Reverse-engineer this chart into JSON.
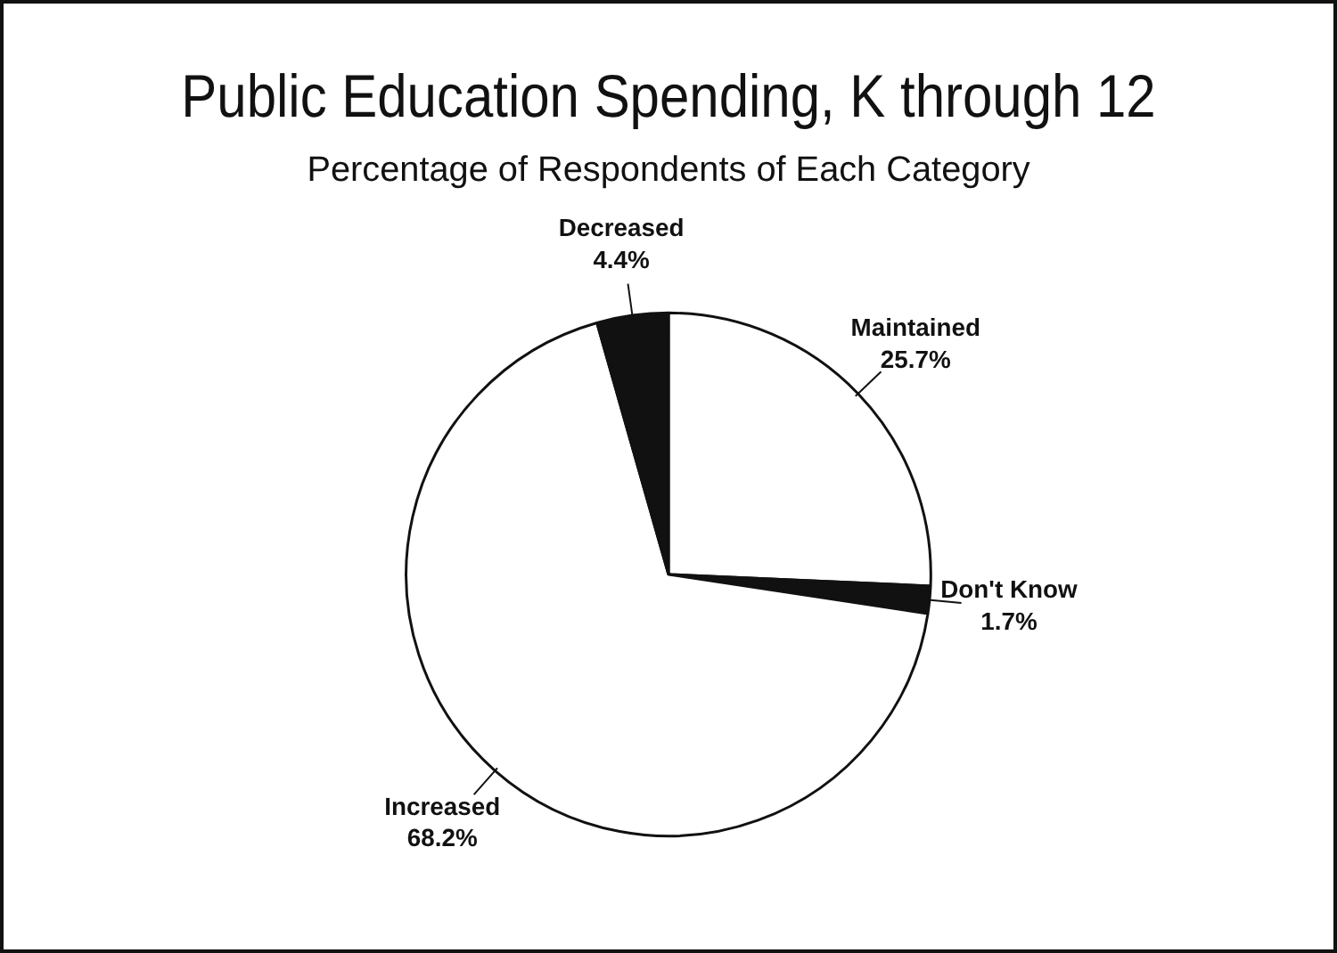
{
  "chart_data": {
    "type": "pie",
    "title": "Public Education Spending, K through 12",
    "subtitle": "Percentage of Respondents of Each Category",
    "categories": [
      "Maintained",
      "Don't Know",
      "Increased",
      "Decreased"
    ],
    "values": [
      25.7,
      1.7,
      68.2,
      4.4
    ],
    "colors": [
      "#ffffff",
      "#111111",
      "#ffffff",
      "#111111"
    ],
    "value_labels": [
      "25.7%",
      "1.7%",
      "68.2%",
      "4.4%"
    ],
    "legend": false
  }
}
